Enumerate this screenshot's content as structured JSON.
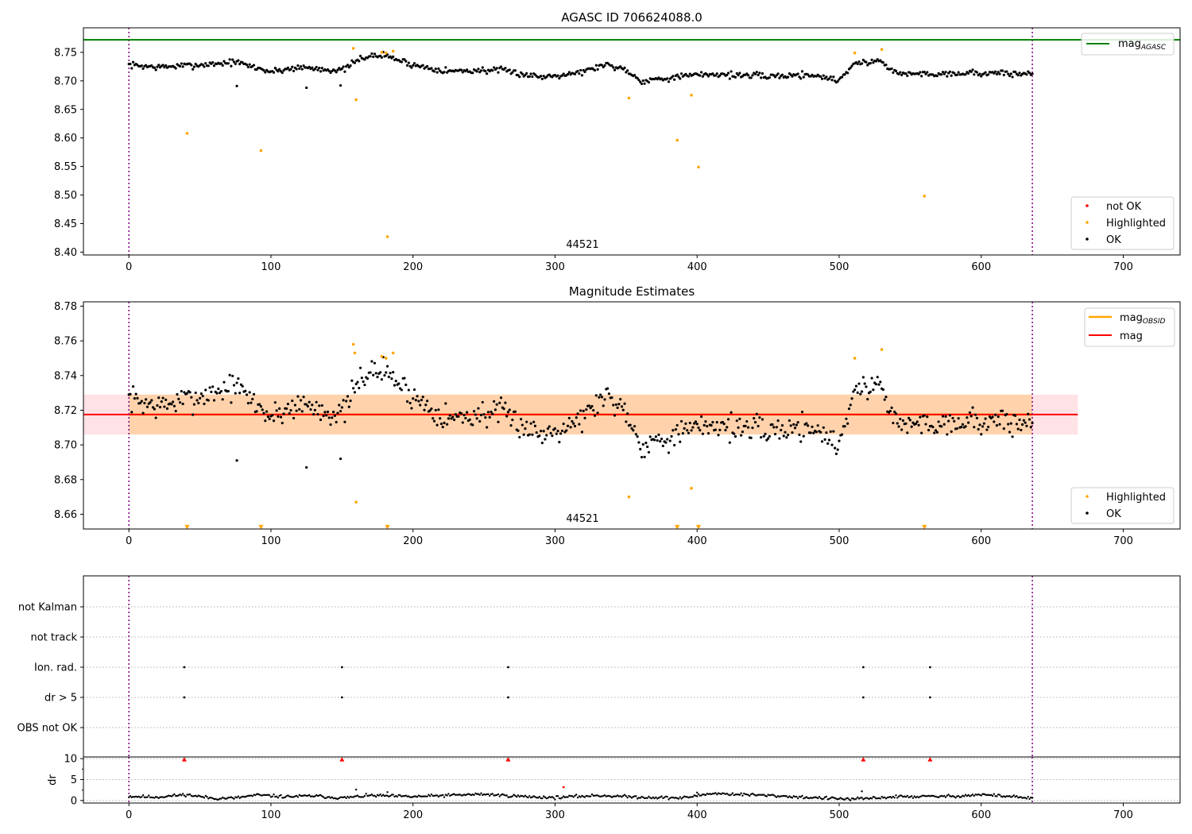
{
  "chart_data": [
    {
      "type": "scatter",
      "title": "AGASC ID 706624088.0",
      "xlim": [
        -32,
        740
      ],
      "ylim": [
        8.395,
        8.793
      ],
      "xticks": [
        0,
        100,
        200,
        300,
        400,
        500,
        600,
        700
      ],
      "yticks": [
        8.4,
        8.45,
        8.5,
        8.55,
        8.6,
        8.65,
        8.7,
        8.75
      ],
      "ytick_decimals": 2,
      "grid": false,
      "vlines": [
        0,
        636
      ],
      "hlines": [
        {
          "name": "mag_AGASC",
          "value": 8.772,
          "color": "#008000"
        }
      ],
      "obsid_label": {
        "text": "44521",
        "x": 318,
        "y": 8.408
      },
      "legends": [
        {
          "placement": "top-right",
          "entries": [
            {
              "label": "mag",
              "sub": "AGASC",
              "kind": "line",
              "color": "#008000"
            }
          ]
        },
        {
          "placement": "lower-right",
          "entries": [
            {
              "label": "not OK",
              "kind": "dot",
              "color": "#ff0000"
            },
            {
              "label": "Highlighted",
              "kind": "dot",
              "color": "#ffa500"
            },
            {
              "label": "OK",
              "kind": "dot",
              "color": "#000000"
            }
          ]
        }
      ],
      "series": [
        {
          "name": "OK",
          "color": "#000000",
          "trend": [
            [
              0,
              8.728
            ],
            [
              20,
              8.724
            ],
            [
              50,
              8.728
            ],
            [
              75,
              8.733
            ],
            [
              100,
              8.716
            ],
            [
              120,
              8.724
            ],
            [
              150,
              8.718
            ],
            [
              165,
              8.742
            ],
            [
              180,
              8.745
            ],
            [
              200,
              8.728
            ],
            [
              225,
              8.717
            ],
            [
              260,
              8.719
            ],
            [
              290,
              8.707
            ],
            [
              320,
              8.716
            ],
            [
              335,
              8.729
            ],
            [
              350,
              8.72
            ],
            [
              360,
              8.7
            ],
            [
              390,
              8.708
            ],
            [
              410,
              8.712
            ],
            [
              450,
              8.708
            ],
            [
              480,
              8.711
            ],
            [
              500,
              8.701
            ],
            [
              510,
              8.73
            ],
            [
              530,
              8.735
            ],
            [
              540,
              8.713
            ],
            [
              560,
              8.712
            ],
            [
              590,
              8.714
            ],
            [
              636,
              8.712
            ]
          ],
          "noise": 0.0055,
          "outliers": [
            [
              76,
              8.691
            ],
            [
              125,
              8.688
            ],
            [
              149,
              8.692
            ]
          ]
        },
        {
          "name": "Highlighted",
          "color": "#ffa500",
          "points": [
            [
              41,
              8.608
            ],
            [
              93,
              8.578
            ],
            [
              158,
              8.757
            ],
            [
              160,
              8.667
            ],
            [
              178,
              8.75
            ],
            [
              181,
              8.749
            ],
            [
              182,
              8.427
            ],
            [
              186,
              8.752
            ],
            [
              352,
              8.67
            ],
            [
              386,
              8.596
            ],
            [
              396,
              8.675
            ],
            [
              401,
              8.549
            ],
            [
              511,
              8.749
            ],
            [
              530,
              8.755
            ],
            [
              560,
              8.498
            ]
          ]
        }
      ]
    },
    {
      "type": "scatter",
      "title": "Magnitude Estimates",
      "xlim": [
        -32,
        740
      ],
      "ylim": [
        8.6515,
        8.7825
      ],
      "xticks": [
        0,
        100,
        200,
        300,
        400,
        500,
        600,
        700
      ],
      "yticks": [
        8.66,
        8.68,
        8.7,
        8.72,
        8.74,
        8.76,
        8.78
      ],
      "ytick_decimals": 2,
      "grid": false,
      "vlines": [
        0,
        636
      ],
      "mag": {
        "name": "mag",
        "value": 8.7175,
        "low": 8.706,
        "high": 8.729,
        "x0": -32,
        "x1": 668,
        "color": "#ff0000"
      },
      "mag_obsid": {
        "name": "mag_OBSID",
        "value": 8.7175,
        "low": 8.706,
        "high": 8.729,
        "x0": 0,
        "x1": 636,
        "color": "#ffa500"
      },
      "obsid_label": {
        "text": "44521",
        "x": 318,
        "y": 8.655
      },
      "legends": [
        {
          "placement": "top-right",
          "entries": [
            {
              "label": "mag",
              "sub": "OBSID",
              "kind": "line",
              "color": "#ffa500"
            },
            {
              "label": "mag",
              "sub": "",
              "kind": "line",
              "color": "#ff0000"
            }
          ]
        },
        {
          "placement": "lower-right",
          "entries": [
            {
              "label": "Highlighted",
              "kind": "dot",
              "color": "#ffa500"
            },
            {
              "label": "OK",
              "kind": "dot",
              "color": "#000000"
            }
          ]
        }
      ],
      "series": [
        {
          "name": "OK",
          "color": "#000000",
          "trend": [
            [
              0,
              8.727
            ],
            [
              20,
              8.722
            ],
            [
              50,
              8.728
            ],
            [
              75,
              8.734
            ],
            [
              100,
              8.716
            ],
            [
              120,
              8.724
            ],
            [
              150,
              8.717
            ],
            [
              165,
              8.741
            ],
            [
              180,
              8.743
            ],
            [
              200,
              8.728
            ],
            [
              225,
              8.715
            ],
            [
              260,
              8.719
            ],
            [
              290,
              8.706
            ],
            [
              320,
              8.716
            ],
            [
              335,
              8.729
            ],
            [
              350,
              8.72
            ],
            [
              360,
              8.7
            ],
            [
              390,
              8.707
            ],
            [
              410,
              8.712
            ],
            [
              450,
              8.708
            ],
            [
              480,
              8.711
            ],
            [
              500,
              8.7
            ],
            [
              510,
              8.731
            ],
            [
              530,
              8.735
            ],
            [
              540,
              8.712
            ],
            [
              560,
              8.712
            ],
            [
              590,
              8.714
            ],
            [
              636,
              8.712
            ]
          ],
          "noise": 0.0075,
          "outliers": [
            [
              76,
              8.691
            ],
            [
              125,
              8.687
            ],
            [
              149,
              8.692
            ]
          ]
        },
        {
          "name": "Highlighted",
          "color": "#ffa500",
          "points": [
            [
              158,
              8.758
            ],
            [
              159,
              8.753
            ],
            [
              160,
              8.667
            ],
            [
              178,
              8.751
            ],
            [
              181,
              8.75
            ],
            [
              186,
              8.753
            ],
            [
              352,
              8.67
            ],
            [
              396,
              8.675
            ],
            [
              511,
              8.75
            ],
            [
              530,
              8.755
            ]
          ]
        },
        {
          "name": "Highlighted (below axis)",
          "color": "#ffa500",
          "marker": "triangle-down",
          "x": [
            41,
            93,
            182,
            386,
            401,
            560
          ],
          "y": 8.6525
        }
      ]
    },
    {
      "type": "scatter",
      "title": "",
      "xlim": [
        -32,
        740
      ],
      "vlines": [
        0,
        636
      ],
      "categories": [
        "not Kalman",
        "not track",
        "Ion. rad.",
        "dr > 5",
        "OBS not OK"
      ],
      "flags": [
        {
          "label": "Ion. rad.",
          "x": [
            39,
            150,
            267,
            517,
            564
          ]
        },
        {
          "label": "dr > 5",
          "x": [
            39,
            150,
            267,
            517,
            564
          ]
        }
      ]
    },
    {
      "type": "scatter",
      "xlim": [
        -32,
        740
      ],
      "ylim": [
        -0.6,
        10.4
      ],
      "xticks": [
        0,
        100,
        200,
        300,
        400,
        500,
        600,
        700
      ],
      "yticks": [
        0,
        5,
        10
      ],
      "ytick_decimals": 0,
      "ylabel": "dr",
      "grid": true,
      "vlines": [
        0,
        636
      ],
      "series": [
        {
          "name": "dr",
          "color": "#000000",
          "trend": [
            [
              0,
              1.0
            ],
            [
              20,
              0.8
            ],
            [
              40,
              1.4
            ],
            [
              60,
              0.5
            ],
            [
              75,
              0.6
            ],
            [
              90,
              1.3
            ],
            [
              110,
              0.9
            ],
            [
              130,
              1.1
            ],
            [
              150,
              0.6
            ],
            [
              170,
              1.2
            ],
            [
              200,
              0.9
            ],
            [
              230,
              1.3
            ],
            [
              250,
              1.5
            ],
            [
              280,
              0.9
            ],
            [
              300,
              0.7
            ],
            [
              330,
              1.2
            ],
            [
              360,
              0.8
            ],
            [
              390,
              0.6
            ],
            [
              410,
              1.7
            ],
            [
              450,
              1.2
            ],
            [
              480,
              0.7
            ],
            [
              510,
              0.3
            ],
            [
              540,
              0.9
            ],
            [
              580,
              1.0
            ],
            [
              600,
              1.4
            ],
            [
              620,
              1.0
            ],
            [
              636,
              0.5
            ]
          ],
          "noise": 0.35,
          "outliers": [
            [
              160,
              2.6
            ],
            [
              182,
              2.0
            ],
            [
              400,
              1.9
            ],
            [
              516,
              2.2
            ]
          ]
        },
        {
          "name": "dr (red)",
          "color": "#ff0000",
          "points": [
            [
              306,
              3.2
            ]
          ]
        },
        {
          "name": "dr clipped",
          "color": "#ff0000",
          "marker": "triangle-up",
          "x": [
            39,
            150,
            267,
            517,
            564
          ],
          "y": 9.8
        }
      ]
    }
  ]
}
